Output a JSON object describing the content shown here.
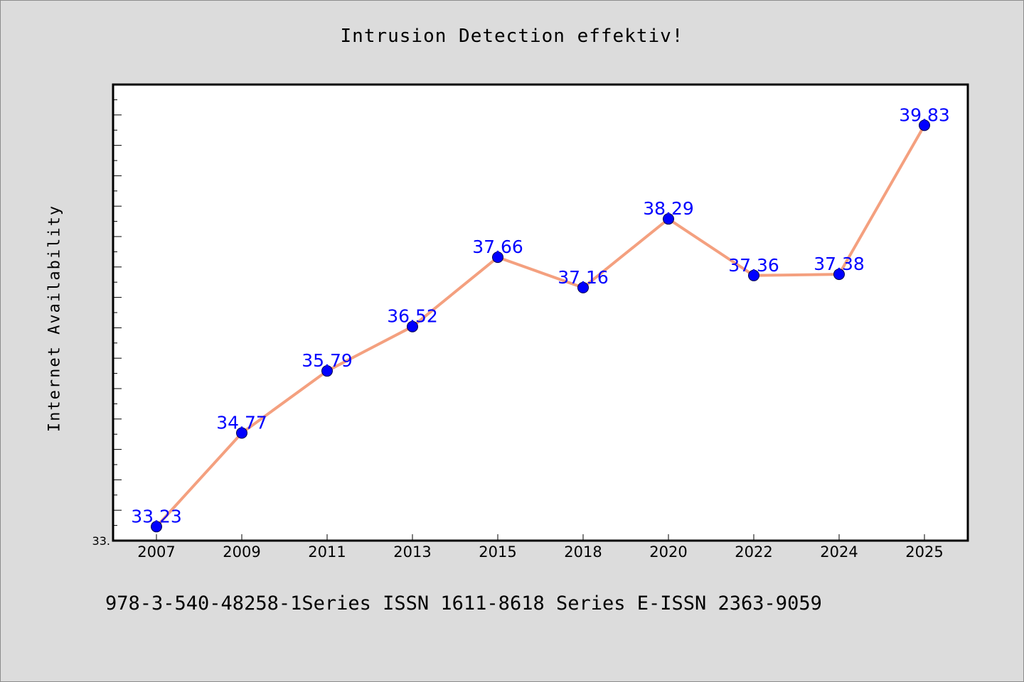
{
  "chart_data": {
    "type": "line",
    "title": "Intrusion Detection effektiv!",
    "ylabel": "Internet Availability",
    "xlabel": "",
    "categories": [
      "2007",
      "2009",
      "2011",
      "2013",
      "2015",
      "2018",
      "2020",
      "2022",
      "2024",
      "2025"
    ],
    "series": [
      {
        "values": [
          33.23,
          34.77,
          35.79,
          36.52,
          37.66,
          37.16,
          38.29,
          37.36,
          37.38,
          39.83
        ]
      }
    ],
    "data_labels": [
      "33.23",
      "34.77",
      "35.79",
      "36.52",
      "37.66",
      "37.16",
      "38.29",
      "37.36",
      "37.38",
      "39.83"
    ],
    "ytick_labels": [
      "33."
    ],
    "ylim": [
      33.0,
      40.5
    ],
    "grid": false,
    "legend": "none",
    "colors": {
      "line": "#f4a07f",
      "marker": "#0000ff",
      "label": "#0000ff",
      "background": "#dcdcdc",
      "plot_background": "#ffffff"
    }
  },
  "footer": "978-3-540-48258-1Series ISSN 1611-8618 Series E-ISSN 2363-9059"
}
